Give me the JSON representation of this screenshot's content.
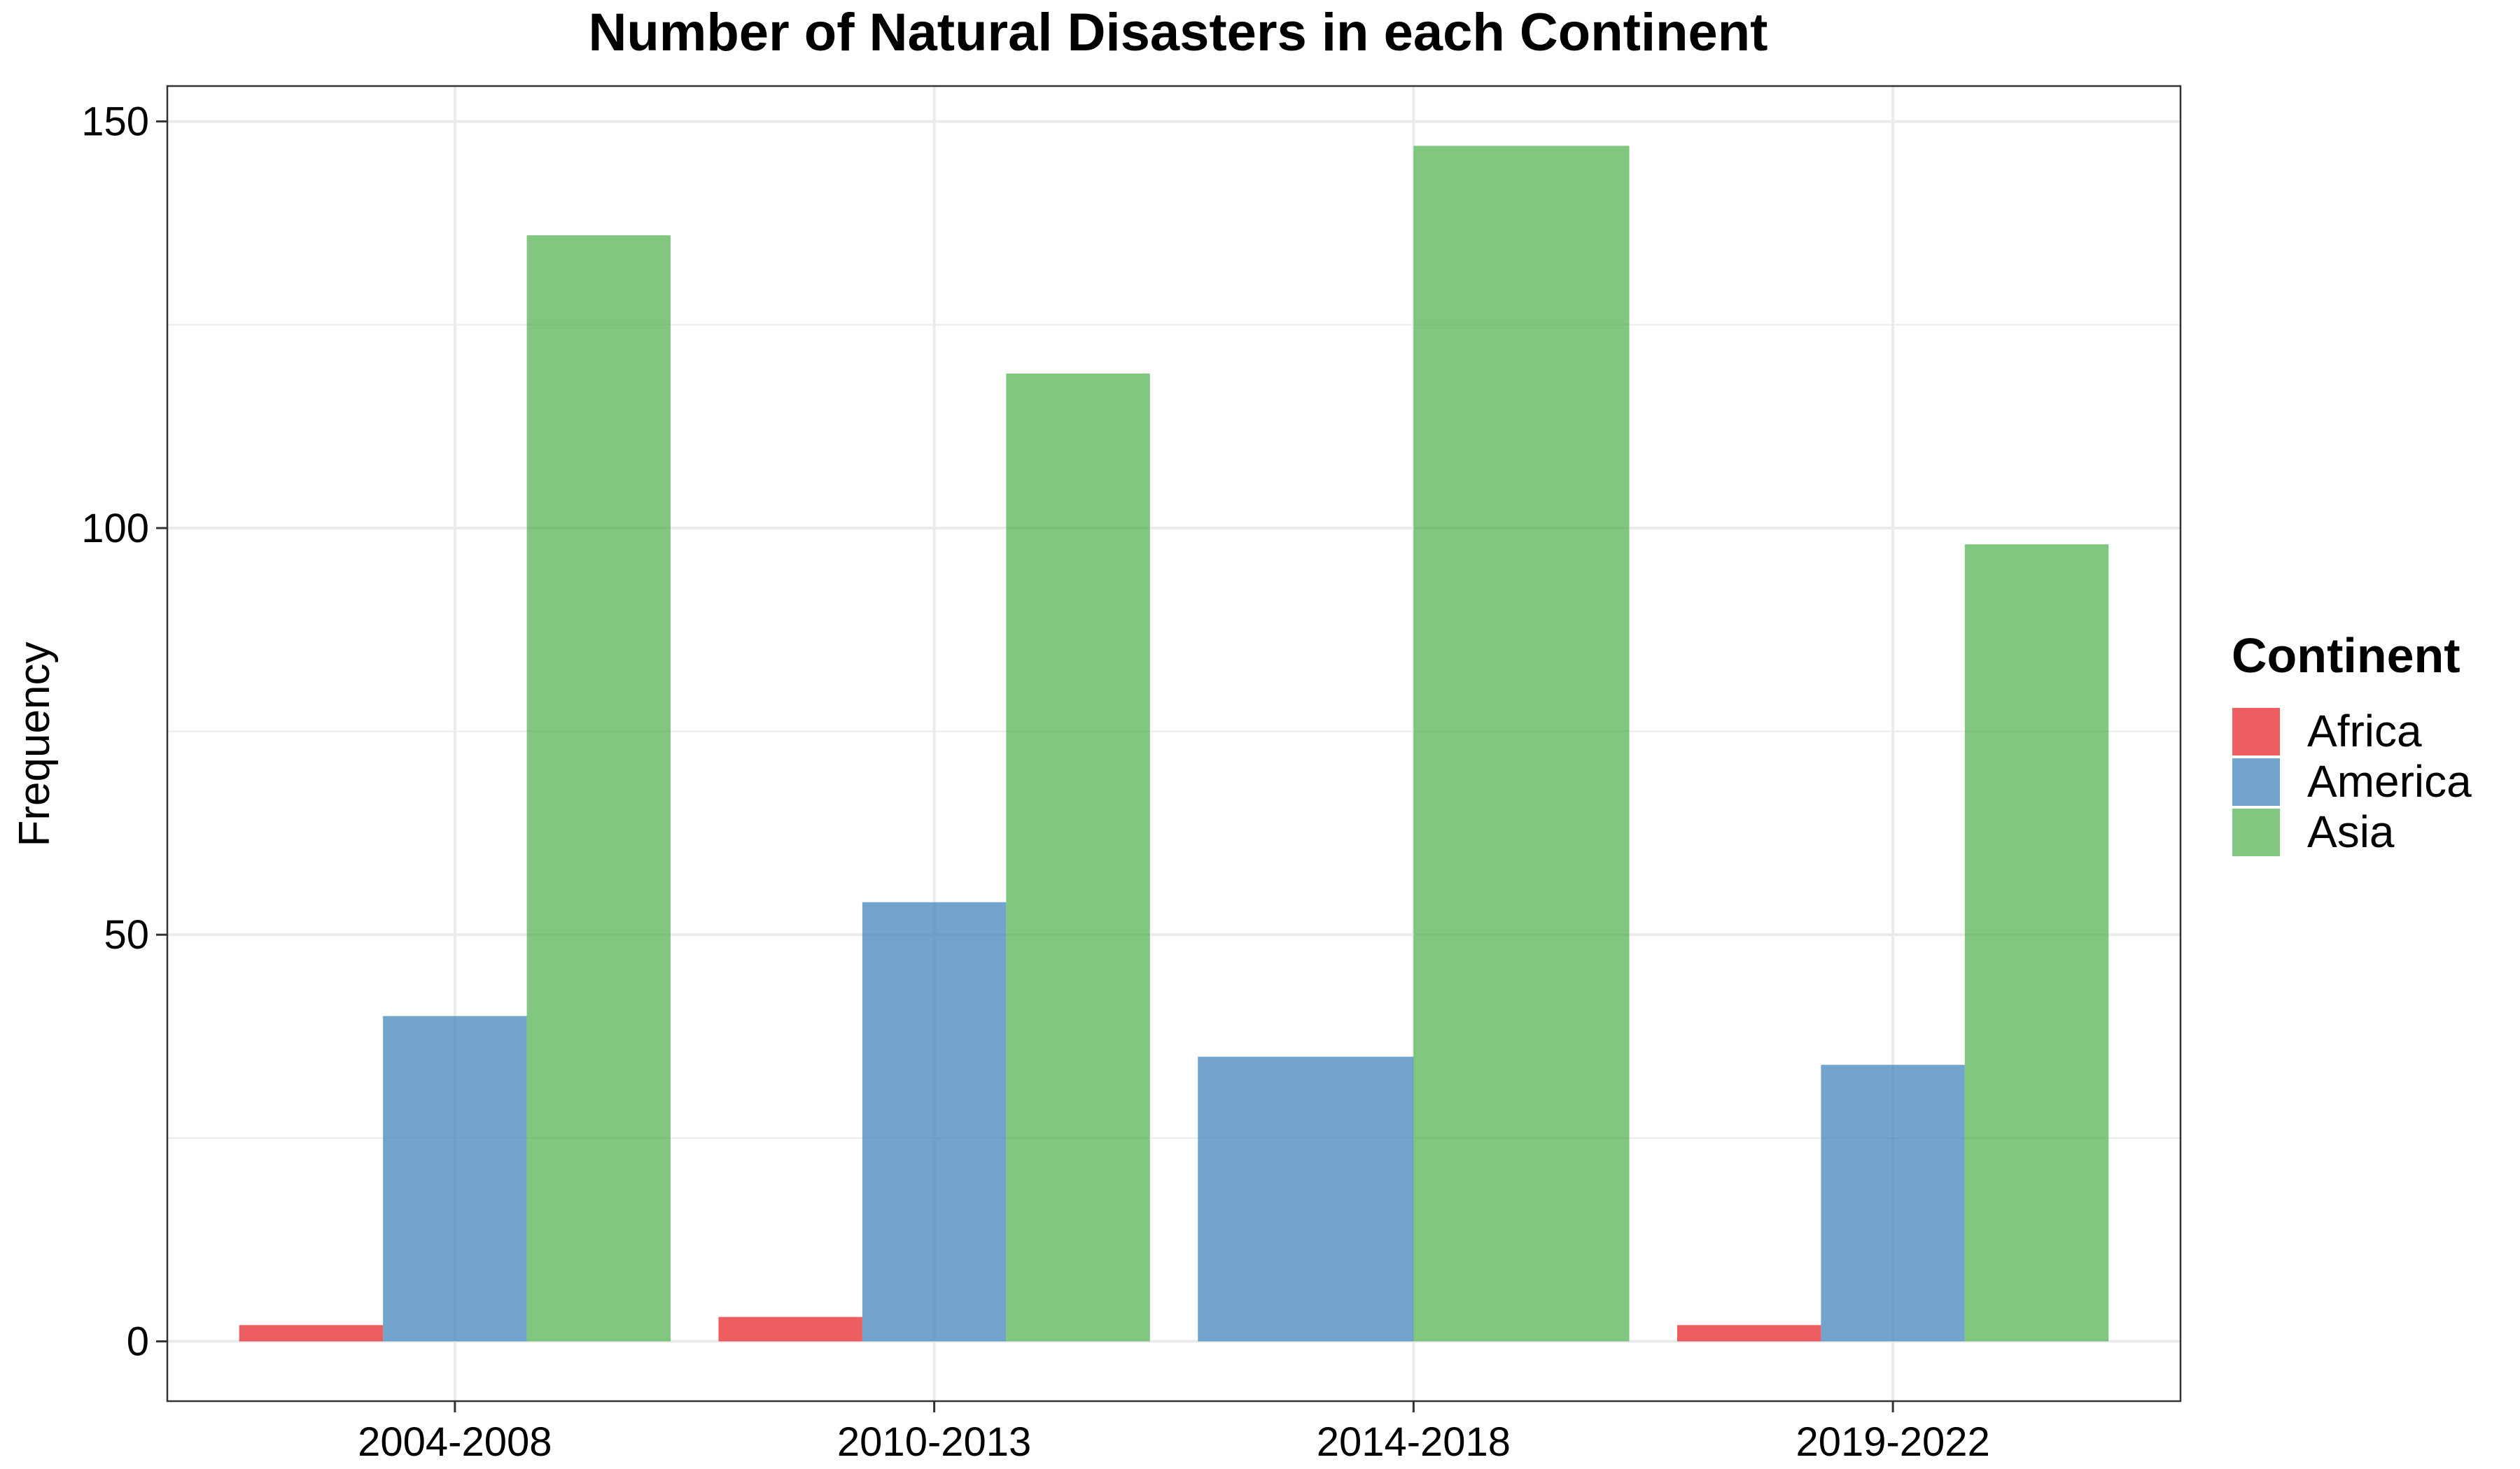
{
  "chart_data": {
    "type": "bar",
    "title": "Number of Natural Disasters in each Continent",
    "xlabel": "",
    "ylabel": "Frequency",
    "categories": [
      "2004-2008",
      "2010-2013",
      "2014-2018",
      "2019-2022"
    ],
    "series": [
      {
        "name": "Africa",
        "color": "#E41A1C",
        "values": [
          2,
          3,
          null,
          2
        ]
      },
      {
        "name": "America",
        "color": "#377EB8",
        "values": [
          40,
          54,
          35,
          34
        ]
      },
      {
        "name": "Asia",
        "color": "#4DAF4A",
        "values": [
          136,
          119,
          147,
          98
        ]
      }
    ],
    "ylim": [
      -7.35,
      154.35
    ],
    "yticks": [
      0,
      50,
      100,
      150
    ],
    "grid": true,
    "legend": {
      "title": "Continent",
      "position": "right"
    }
  }
}
